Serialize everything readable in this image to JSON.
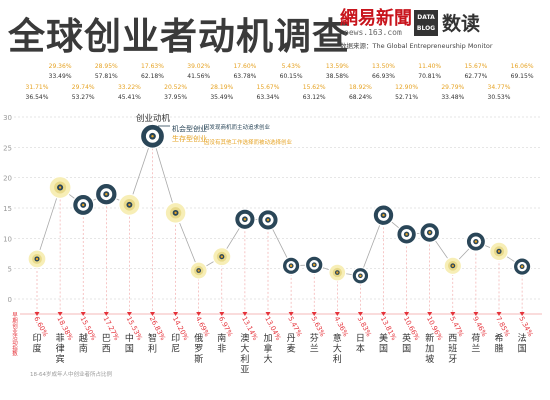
{
  "header": {
    "title": "全球创业者动机调查",
    "logo_main": "網易新聞",
    "logo_sub": "news.163.com",
    "badge": "DATA BLOG",
    "brand": "数读",
    "source": "数据来源：The Global Entrepreneurship Monitor"
  },
  "colors": {
    "axis": "#f0a0a0",
    "grid": "#cccccc",
    "series_line": "#aaaaaa",
    "opportunity": "#2a4658",
    "necessity": "#e6a324",
    "ring_light": "#f7eeb6",
    "necessity_pct": "#e6a324",
    "opportunity_pct": "#333333",
    "total_pct": "#e5323a"
  },
  "chart_data": {
    "type": "scatter",
    "categories": [
      "印度",
      "菲律宾",
      "越南",
      "巴西",
      "中国",
      "智利",
      "印尼",
      "俄罗斯",
      "南非",
      "澳大利亚",
      "加拿大",
      "丹麦",
      "芬兰",
      "意大利",
      "日本",
      "美国",
      "英国",
      "新加坡",
      "西班牙",
      "荷兰",
      "希腊",
      "法国"
    ],
    "series": [
      {
        "name": "创业动机",
        "values": [
          6.6,
          18.38,
          15.5,
          17.27,
          15.53,
          26.83,
          14.2,
          4.69,
          6.97,
          13.14,
          13.04,
          5.47,
          5.63,
          4.36,
          3.83,
          13.81,
          10.66,
          10.96,
          5.47,
          9.46,
          7.85,
          5.34
        ]
      }
    ],
    "necessity_share": [
      "31.71%",
      "29.36%",
      "29.74%",
      "28.95%",
      "33.22%",
      "17.63%",
      "20.52%",
      "39.02%",
      "28.19%",
      "17.60%",
      "15.67%",
      "5.43%",
      "15.62%",
      "13.59%",
      "18.92%",
      "13.50%",
      "12.90%",
      "11.40%",
      "29.79%",
      "15.67%",
      "34.77%",
      "16.06%"
    ],
    "opportunity_share": [
      "36.54%",
      "33.49%",
      "53.27%",
      "57.81%",
      "45.41%",
      "62.18%",
      "37.95%",
      "41.56%",
      "35.49%",
      "63.78%",
      "63.34%",
      "60.15%",
      "63.12%",
      "38.58%",
      "68.24%",
      "66.93%",
      "52.71%",
      "70.81%",
      "33.48%",
      "62.77%",
      "30.53%",
      "69.15%"
    ],
    "total_labels": [
      "6.60%",
      "18.38%",
      "15.50%",
      "17.27%",
      "15.53%",
      "26.83%",
      "14.20%",
      "4.69%",
      "6.97%",
      "13.14%",
      "13.04%",
      "5.47%",
      "5.63%",
      "4.36%",
      "3.83%",
      "13.81%",
      "10.66%",
      "10.96%",
      "5.47%",
      "9.46%",
      "7.85%",
      "5.34%"
    ],
    "legend": {
      "title": "创业动机",
      "opportunity": "机会型创业",
      "necessity": "生存型创业",
      "opportunity_note": "因发现商机而主动追求创业",
      "necessity_note": "因没有其他工作选择而被动选择创业"
    },
    "y_ticks": [
      0,
      5,
      10,
      15,
      20,
      25,
      30
    ],
    "ylim": [
      0,
      30
    ],
    "grid": true,
    "axis_note": "18-64岁成年人中创业者所占比例",
    "left_note": "早期创业活动指数"
  }
}
